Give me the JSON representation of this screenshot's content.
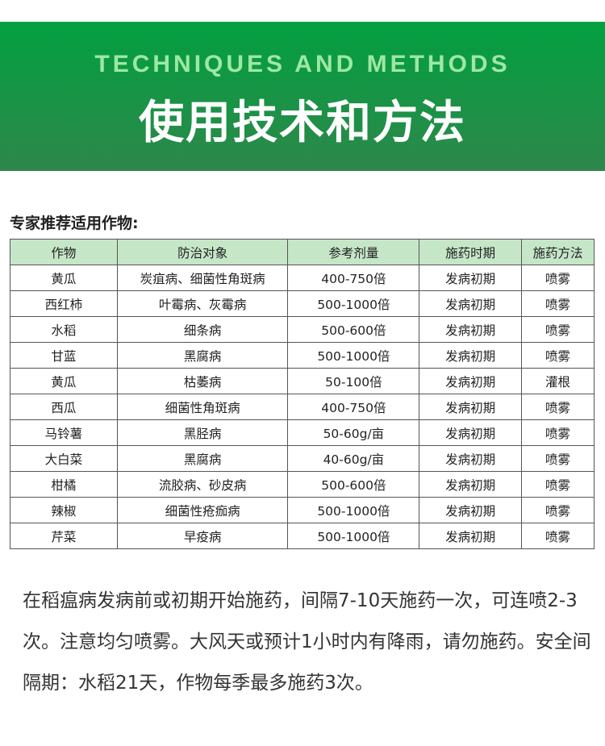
{
  "banner": {
    "title_en": "TECHNIQUES AND METHODS",
    "title_zh": "使用技术和方法"
  },
  "subtitle": "专家推荐适用作物:",
  "table": {
    "headers": [
      "作物",
      "防治对象",
      "参考剂量",
      "施药时期",
      "施药方法"
    ],
    "rows": [
      [
        "黄瓜",
        "炭疽病、细菌性角斑病",
        "400-750倍",
        "发病初期",
        "喷雾"
      ],
      [
        "西红柿",
        "叶霉病、灰霉病",
        "500-1000倍",
        "发病初期",
        "喷雾"
      ],
      [
        "水稻",
        "细条病",
        "500-600倍",
        "发病初期",
        "喷雾"
      ],
      [
        "甘蓝",
        "黑腐病",
        "500-1000倍",
        "发病初期",
        "喷雾"
      ],
      [
        "黄瓜",
        "枯萎病",
        "50-100倍",
        "发病初期",
        "灌根"
      ],
      [
        "西瓜",
        "细菌性角斑病",
        "400-750倍",
        "发病初期",
        "喷雾"
      ],
      [
        "马铃薯",
        "黑胫病",
        "50-60g/亩",
        "发病初期",
        "喷雾"
      ],
      [
        "大白菜",
        "黑腐病",
        "40-60g/亩",
        "发病初期",
        "喷雾"
      ],
      [
        "柑橘",
        "流胶病、砂皮病",
        "500-600倍",
        "发病初期",
        "喷雾"
      ],
      [
        "辣椒",
        "细菌性疮痂病",
        "500-1000倍",
        "发病初期",
        "喷雾"
      ],
      [
        "芹菜",
        "早疫病",
        "500-1000倍",
        "发病初期",
        "喷雾"
      ]
    ]
  },
  "note": "在稻瘟病发病前或初期开始施药，间隔7-10天施药一次，可连喷2-3次。注意均匀喷雾。大风天或预计1小时内有降雨，请勿施药。安全间隔期：水稻21天，作物每季最多施药3次。"
}
